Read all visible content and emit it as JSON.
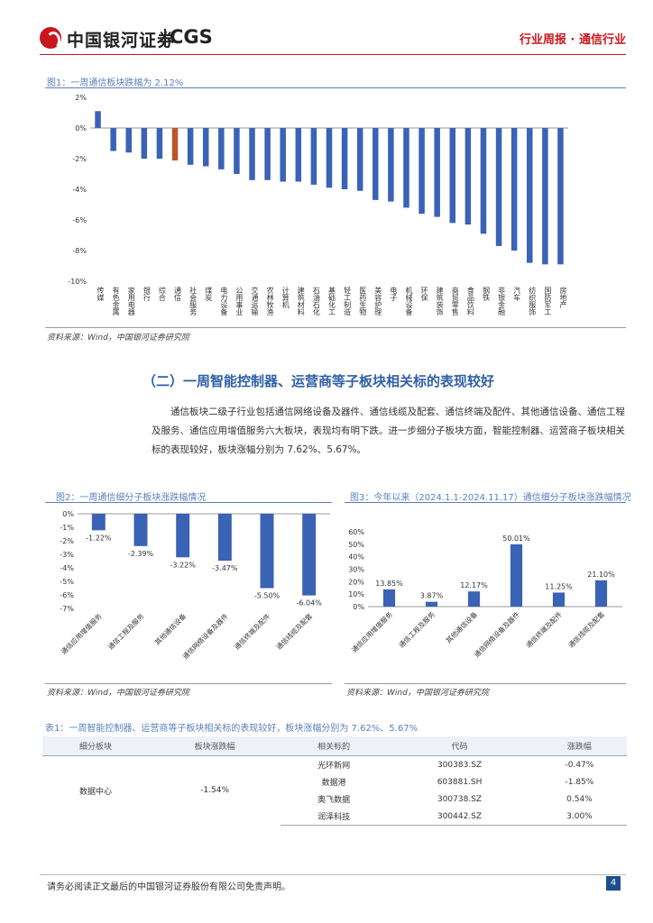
{
  "header": {
    "logo_cn": "中国银河证券",
    "logo_en": "CGS",
    "report_type": "行业周报 · 通信行业"
  },
  "figure1": {
    "title": "图1：一周通信板块跌幅为 2.12%",
    "source": "资料来源：Wind，中国银河证券研究院"
  },
  "section": {
    "title": "（二）一周智能控制器、运营商等子板块相关标的表现较好",
    "paragraph": "通信板块二级子行业包括通信网络设备及器件、通信线缆及配套、通信终端及配件、其他通信设备、通信工程及服务、通信应用增值服务六大板块，表现均有明下跌。进一步细分子板块方面，智能控制器、运营商子板块相关标的表现较好，板块涨幅分别为 7.62%、5.67%。"
  },
  "figure2": {
    "title": "图2：一周通信细分子板块涨跌幅情况",
    "source": "资料来源：Wind，中国银河证券研究院"
  },
  "figure3": {
    "title": "图3：今年以来（2024.1.1-2024.11.17）通信细分子板块涨跌幅情况",
    "source": "资料来源：Wind，中国银河证券研究院"
  },
  "chart_data": [
    {
      "type": "bar",
      "id": "fig1",
      "title": "一周通信板块跌幅为 2.12%",
      "categories": [
        "传媒",
        "有色金属",
        "家用电器",
        "银行",
        "综合",
        "通信",
        "社会服务",
        "煤炭",
        "电力设备",
        "公用事业",
        "交通运输",
        "农林牧渔",
        "计算机",
        "建筑材料",
        "石油石化",
        "基础化工",
        "轻工制造",
        "医药生物",
        "美容护理",
        "电子",
        "机械设备",
        "环保",
        "建筑装饰",
        "商贸零售",
        "食品饮料",
        "钢铁",
        "非银金融",
        "汽车",
        "纺织服饰",
        "国防军工",
        "房地产"
      ],
      "values": [
        1.1,
        -1.5,
        -1.6,
        -2.0,
        -2.0,
        -2.12,
        -2.4,
        -2.5,
        -2.7,
        -3.0,
        -3.4,
        -3.4,
        -3.5,
        -3.5,
        -3.7,
        -3.9,
        -4.0,
        -4.1,
        -4.7,
        -4.8,
        -5.2,
        -5.6,
        -5.8,
        -6.2,
        -6.3,
        -6.9,
        -7.7,
        -8.0,
        -8.8,
        -8.9,
        -8.9
      ],
      "highlight": "通信",
      "highlight_color": "#b8572a",
      "bar_color": "#3a62b5",
      "ylim": [
        -10,
        2
      ],
      "yticks": [
        "2%",
        "0%",
        "-2%",
        "-4%",
        "-6%",
        "-8%",
        "-10%"
      ]
    },
    {
      "type": "bar",
      "id": "fig2",
      "title": "一周通信细分子板块涨跌幅情况",
      "categories": [
        "通信应用增值服务",
        "通信工程及服务",
        "其他通信设备",
        "通信网络设备及器件",
        "通信终端及配件",
        "通信线缆及配套"
      ],
      "values": [
        -1.22,
        -2.39,
        -3.22,
        -3.47,
        -5.5,
        -6.04
      ],
      "labels": [
        "-1.22%",
        "-2.39%",
        "-3.22%",
        "-3.47%",
        "-5.50%",
        "-6.04%"
      ],
      "bar_color": "#3a62b5",
      "ylim": [
        -7,
        0
      ],
      "yticks": [
        "0%",
        "-1%",
        "-2%",
        "-3%",
        "-4%",
        "-5%",
        "-6%",
        "-7%"
      ]
    },
    {
      "type": "bar",
      "id": "fig3",
      "title": "今年以来（2024.1.1-2024.11.17）通信细分子板块涨跌幅情况",
      "categories": [
        "通信应用增值服务",
        "通信工程及服务",
        "其他通信设备",
        "通信网络设备及器件",
        "通信终端及配件",
        "通信线缆及配套"
      ],
      "values": [
        13.85,
        3.87,
        12.17,
        50.01,
        11.25,
        21.1
      ],
      "labels": [
        "13.85%",
        "3.87%",
        "12.17%",
        "50.01%",
        "11.25%",
        "21.10%"
      ],
      "bar_color": "#3a62b5",
      "ylim": [
        0,
        60
      ],
      "yticks": [
        "60%",
        "50%",
        "40%",
        "30%",
        "20%",
        "10%",
        "0%"
      ]
    }
  ],
  "table1": {
    "title": "表1：一周智能控制器、运营商等子板块相关标的表现较好，板块涨幅分别为 7.62%、5.67%",
    "headers": [
      "细分板块",
      "板块涨跌幅",
      "相关标的",
      "代码",
      "涨跌幅"
    ],
    "group": {
      "sector": "数据中心",
      "change": "-1.54%"
    },
    "rows": [
      {
        "name": "光环新网",
        "code": "300383.SZ",
        "change": "-0.47%"
      },
      {
        "name": "数据港",
        "code": "603881.SH",
        "change": "-1.85%"
      },
      {
        "name": "奥飞数据",
        "code": "300738.SZ",
        "change": "0.54%"
      },
      {
        "name": "润泽科技",
        "code": "300442.SZ",
        "change": "3.00%"
      }
    ]
  },
  "footer": {
    "disclaimer": "请务必阅读正文最后的中国银河证券股份有限公司免责声明。",
    "page": "4"
  }
}
